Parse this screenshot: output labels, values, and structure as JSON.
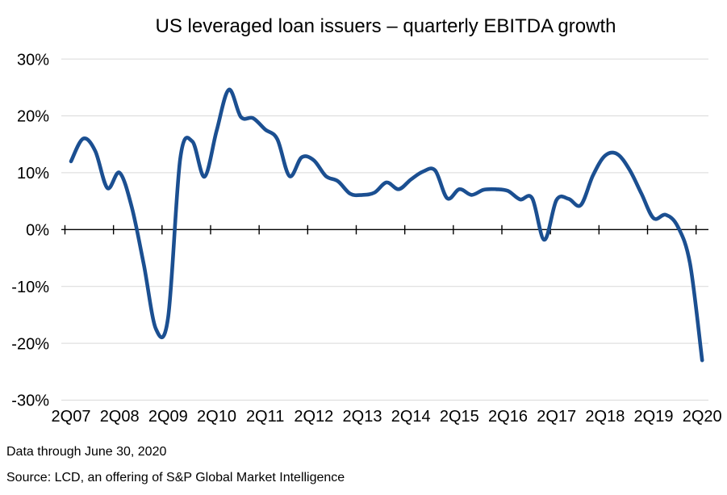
{
  "chart_data": {
    "type": "line",
    "title": "US leveraged loan issuers – quarterly EBITDA growth",
    "series_name": "Quarterly EBITDA growth (%)",
    "x": [
      "2Q07",
      "3Q07",
      "4Q07",
      "1Q08",
      "2Q08",
      "3Q08",
      "4Q08",
      "1Q09",
      "2Q09",
      "3Q09",
      "4Q09",
      "1Q10",
      "2Q10",
      "3Q10",
      "4Q10",
      "1Q11",
      "2Q11",
      "3Q11",
      "4Q11",
      "1Q12",
      "2Q12",
      "3Q12",
      "4Q12",
      "1Q13",
      "2Q13",
      "3Q13",
      "4Q13",
      "1Q14",
      "2Q14",
      "3Q14",
      "4Q14",
      "1Q15",
      "2Q15",
      "3Q15",
      "4Q15",
      "1Q16",
      "2Q16",
      "3Q16",
      "4Q16",
      "1Q17",
      "2Q17",
      "3Q17",
      "4Q17",
      "1Q18",
      "2Q18",
      "3Q18",
      "4Q18",
      "1Q19",
      "2Q19",
      "3Q19",
      "4Q19",
      "1Q20",
      "2Q20"
    ],
    "values": [
      12,
      16,
      13.8,
      7.3,
      10,
      4,
      -6.2,
      -17.5,
      -15.5,
      12.5,
      15.5,
      9.3,
      17.4,
      24.6,
      19.8,
      19.6,
      17.6,
      15.9,
      9.4,
      12.7,
      12.2,
      9.4,
      8.5,
      6.3,
      6.1,
      6.5,
      8.3,
      7.1,
      8.8,
      10.2,
      10.4,
      5.5,
      7.1,
      6.1,
      7,
      7.1,
      6.8,
      5.3,
      5.5,
      -1.8,
      5.2,
      5.4,
      4.3,
      9.5,
      13,
      13.3,
      10.6,
      6.3,
      2,
      2.6,
      0.5,
      -6,
      -23
    ],
    "x_tick_labels": [
      "2Q07",
      "2Q08",
      "2Q09",
      "2Q10",
      "2Q11",
      "2Q12",
      "2Q13",
      "2Q14",
      "2Q15",
      "2Q16",
      "2Q17",
      "2Q18",
      "2Q19",
      "2Q20"
    ],
    "y_tick_labels": [
      "30%",
      "20%",
      "10%",
      "0%",
      "-10%",
      "-20%",
      "-30%"
    ],
    "y_tick_values": [
      30,
      20,
      10,
      0,
      -10,
      -20,
      -30
    ],
    "ylim": [
      -30,
      30
    ],
    "grid": "horizontal",
    "legend": "none",
    "line_color": "#1b4f91",
    "grid_color": "#d9d9d9",
    "axis_color": "#000000",
    "text_color": "#000000"
  },
  "notes": {
    "data_through": "Data through June 30, 2020",
    "source": "Source: LCD, an offering of S&P Global Market Intelligence"
  }
}
